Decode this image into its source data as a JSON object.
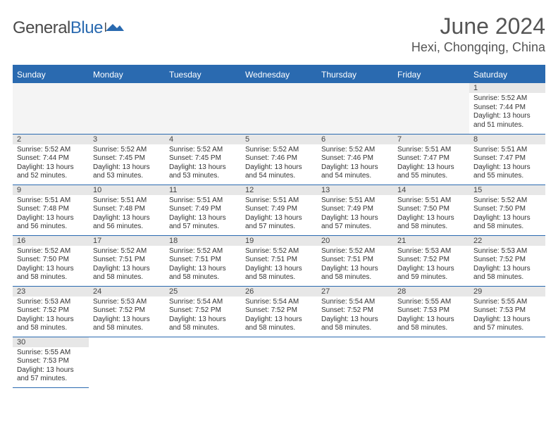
{
  "logo": {
    "text_gray": "General",
    "text_blue": "Blue"
  },
  "header": {
    "month_title": "June 2024",
    "location": "Hexi, Chongqing, China"
  },
  "colors": {
    "brand_blue": "#2a6ab0",
    "header_row_bg": "#2a6ab0",
    "daynum_bg": "#e7e7e7",
    "empty_bg": "#f4f4f4"
  },
  "weekdays": [
    "Sunday",
    "Monday",
    "Tuesday",
    "Wednesday",
    "Thursday",
    "Friday",
    "Saturday"
  ],
  "first_weekday": 6,
  "days": [
    {
      "n": 1,
      "sunrise": "5:52 AM",
      "sunset": "7:44 PM",
      "daylight": "13 hours and 51 minutes."
    },
    {
      "n": 2,
      "sunrise": "5:52 AM",
      "sunset": "7:44 PM",
      "daylight": "13 hours and 52 minutes."
    },
    {
      "n": 3,
      "sunrise": "5:52 AM",
      "sunset": "7:45 PM",
      "daylight": "13 hours and 53 minutes."
    },
    {
      "n": 4,
      "sunrise": "5:52 AM",
      "sunset": "7:45 PM",
      "daylight": "13 hours and 53 minutes."
    },
    {
      "n": 5,
      "sunrise": "5:52 AM",
      "sunset": "7:46 PM",
      "daylight": "13 hours and 54 minutes."
    },
    {
      "n": 6,
      "sunrise": "5:52 AM",
      "sunset": "7:46 PM",
      "daylight": "13 hours and 54 minutes."
    },
    {
      "n": 7,
      "sunrise": "5:51 AM",
      "sunset": "7:47 PM",
      "daylight": "13 hours and 55 minutes."
    },
    {
      "n": 8,
      "sunrise": "5:51 AM",
      "sunset": "7:47 PM",
      "daylight": "13 hours and 55 minutes."
    },
    {
      "n": 9,
      "sunrise": "5:51 AM",
      "sunset": "7:48 PM",
      "daylight": "13 hours and 56 minutes."
    },
    {
      "n": 10,
      "sunrise": "5:51 AM",
      "sunset": "7:48 PM",
      "daylight": "13 hours and 56 minutes."
    },
    {
      "n": 11,
      "sunrise": "5:51 AM",
      "sunset": "7:49 PM",
      "daylight": "13 hours and 57 minutes."
    },
    {
      "n": 12,
      "sunrise": "5:51 AM",
      "sunset": "7:49 PM",
      "daylight": "13 hours and 57 minutes."
    },
    {
      "n": 13,
      "sunrise": "5:51 AM",
      "sunset": "7:49 PM",
      "daylight": "13 hours and 57 minutes."
    },
    {
      "n": 14,
      "sunrise": "5:51 AM",
      "sunset": "7:50 PM",
      "daylight": "13 hours and 58 minutes."
    },
    {
      "n": 15,
      "sunrise": "5:52 AM",
      "sunset": "7:50 PM",
      "daylight": "13 hours and 58 minutes."
    },
    {
      "n": 16,
      "sunrise": "5:52 AM",
      "sunset": "7:50 PM",
      "daylight": "13 hours and 58 minutes."
    },
    {
      "n": 17,
      "sunrise": "5:52 AM",
      "sunset": "7:51 PM",
      "daylight": "13 hours and 58 minutes."
    },
    {
      "n": 18,
      "sunrise": "5:52 AM",
      "sunset": "7:51 PM",
      "daylight": "13 hours and 58 minutes."
    },
    {
      "n": 19,
      "sunrise": "5:52 AM",
      "sunset": "7:51 PM",
      "daylight": "13 hours and 58 minutes."
    },
    {
      "n": 20,
      "sunrise": "5:52 AM",
      "sunset": "7:51 PM",
      "daylight": "13 hours and 58 minutes."
    },
    {
      "n": 21,
      "sunrise": "5:53 AM",
      "sunset": "7:52 PM",
      "daylight": "13 hours and 59 minutes."
    },
    {
      "n": 22,
      "sunrise": "5:53 AM",
      "sunset": "7:52 PM",
      "daylight": "13 hours and 58 minutes."
    },
    {
      "n": 23,
      "sunrise": "5:53 AM",
      "sunset": "7:52 PM",
      "daylight": "13 hours and 58 minutes."
    },
    {
      "n": 24,
      "sunrise": "5:53 AM",
      "sunset": "7:52 PM",
      "daylight": "13 hours and 58 minutes."
    },
    {
      "n": 25,
      "sunrise": "5:54 AM",
      "sunset": "7:52 PM",
      "daylight": "13 hours and 58 minutes."
    },
    {
      "n": 26,
      "sunrise": "5:54 AM",
      "sunset": "7:52 PM",
      "daylight": "13 hours and 58 minutes."
    },
    {
      "n": 27,
      "sunrise": "5:54 AM",
      "sunset": "7:52 PM",
      "daylight": "13 hours and 58 minutes."
    },
    {
      "n": 28,
      "sunrise": "5:55 AM",
      "sunset": "7:53 PM",
      "daylight": "13 hours and 58 minutes."
    },
    {
      "n": 29,
      "sunrise": "5:55 AM",
      "sunset": "7:53 PM",
      "daylight": "13 hours and 57 minutes."
    },
    {
      "n": 30,
      "sunrise": "5:55 AM",
      "sunset": "7:53 PM",
      "daylight": "13 hours and 57 minutes."
    }
  ],
  "labels": {
    "sunrise": "Sunrise:",
    "sunset": "Sunset:",
    "daylight": "Daylight:"
  }
}
